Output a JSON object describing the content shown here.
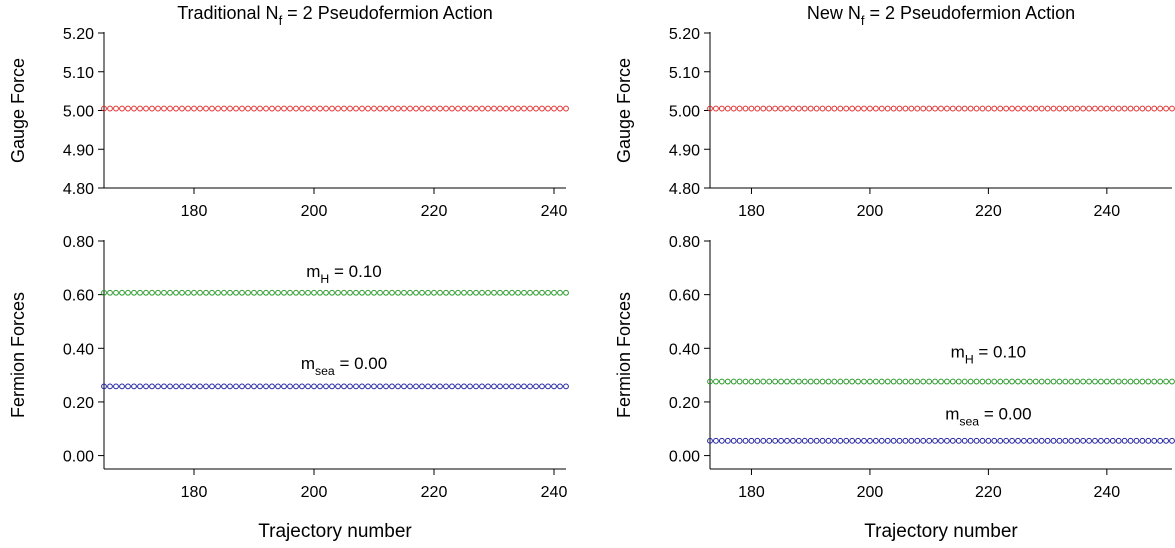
{
  "chart_data": [
    {
      "type": "scatter",
      "title": "Traditional N",
      "title_sub": "f",
      "title_rest": " = 2 Pseudofermion Action",
      "xlabel": "",
      "ylabel": "Gauge Force",
      "xlim": [
        165,
        242
      ],
      "ylim": [
        4.8,
        5.2
      ],
      "xticks": [
        180,
        200,
        220,
        240
      ],
      "yticks": [
        "4.80",
        "4.90",
        "5.00",
        "5.10",
        "5.20"
      ],
      "x_start": 165,
      "x_end": 242,
      "x_step": 1,
      "series": [
        {
          "color": "#e03030",
          "y": 5.005
        }
      ],
      "annotations": []
    },
    {
      "type": "scatter",
      "title": "New N",
      "title_sub": "f",
      "title_rest": " = 2 Pseudofermion Action",
      "xlabel": "",
      "ylabel": "Gauge Force",
      "xlim": [
        173,
        251
      ],
      "ylim": [
        4.8,
        5.2
      ],
      "xticks": [
        180,
        200,
        220,
        240
      ],
      "yticks": [
        "4.80",
        "4.90",
        "5.00",
        "5.10",
        "5.20"
      ],
      "x_start": 173,
      "x_end": 251,
      "x_step": 1,
      "series": [
        {
          "color": "#e03030",
          "y": 5.005
        }
      ],
      "annotations": []
    },
    {
      "type": "scatter",
      "title": "",
      "xlabel": "Trajectory number",
      "ylabel": "Fermion Forces",
      "xlim": [
        165,
        242
      ],
      "ylim": [
        -0.05,
        0.8
      ],
      "xticks": [
        180,
        200,
        220,
        240
      ],
      "yticks": [
        "0.00",
        "0.20",
        "0.40",
        "0.60",
        "0.80"
      ],
      "x_start": 165,
      "x_end": 242,
      "x_step": 1,
      "series": [
        {
          "color": "#2a9a2a",
          "y": 0.607
        },
        {
          "color": "#2020a0",
          "y": 0.258
        }
      ],
      "annotations": [
        {
          "main": "m",
          "sub": "H",
          "rest": " = 0.10",
          "x": 205,
          "y": 0.665
        },
        {
          "main": "m",
          "sub": "sea",
          "rest": " = 0.00",
          "x": 205,
          "y": 0.322
        }
      ]
    },
    {
      "type": "scatter",
      "title": "",
      "xlabel": "Trajectory number",
      "ylabel": "Fermion Forces",
      "xlim": [
        173,
        251
      ],
      "ylim": [
        -0.05,
        0.8
      ],
      "xticks": [
        180,
        200,
        220,
        240
      ],
      "yticks": [
        "0.00",
        "0.20",
        "0.40",
        "0.60",
        "0.80"
      ],
      "x_start": 173,
      "x_end": 251,
      "x_step": 1,
      "series": [
        {
          "color": "#2a9a2a",
          "y": 0.276
        },
        {
          "color": "#2020a0",
          "y": 0.055
        }
      ],
      "annotations": [
        {
          "main": "m",
          "sub": "H",
          "rest": " = 0.10",
          "x": 220,
          "y": 0.365
        },
        {
          "main": "m",
          "sub": "sea",
          "rest": " = 0.00",
          "x": 220,
          "y": 0.135
        }
      ]
    }
  ]
}
